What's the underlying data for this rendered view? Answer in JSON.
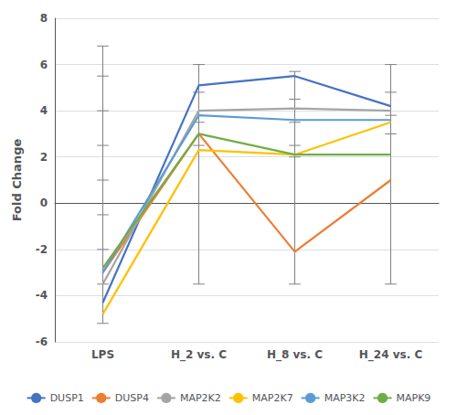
{
  "chart_data": {
    "type": "line",
    "categories": [
      "LPS",
      "H_2 vs. C",
      "H_8 vs. C",
      "H_24 vs. C"
    ],
    "series": [
      {
        "name": "DUSP1",
        "color": "#4472C4",
        "values": [
          -4.3,
          5.1,
          5.5,
          4.2
        ]
      },
      {
        "name": "DUSP4",
        "color": "#ED7D31",
        "values": [
          -3.0,
          3.0,
          -2.1,
          1.0
        ]
      },
      {
        "name": "MAP2K2",
        "color": "#A5A5A5",
        "values": [
          -3.5,
          4.0,
          4.1,
          4.0
        ]
      },
      {
        "name": "MAP2K7",
        "color": "#FFC000",
        "values": [
          -4.8,
          2.3,
          2.1,
          3.5
        ]
      },
      {
        "name": "MAP3K2",
        "color": "#5B9BD5",
        "values": [
          -3.0,
          3.8,
          3.6,
          3.6
        ]
      },
      {
        "name": "MAPK9",
        "color": "#70AD47",
        "values": [
          -2.8,
          3.0,
          2.1,
          2.1
        ]
      }
    ],
    "error_bars": [
      {
        "low": -5.2,
        "high": 6.8,
        "ticks": [
          6.8,
          5.5,
          4.0,
          2.5,
          1.0,
          -0.5,
          -2.0,
          -3.5,
          -5.2
        ]
      },
      {
        "low": -3.5,
        "high": 6.0,
        "ticks": [
          6.0,
          4.8,
          3.5,
          2.5,
          -3.5
        ]
      },
      {
        "low": -3.5,
        "high": 5.7,
        "ticks": [
          5.7,
          4.5,
          3.5,
          2.5,
          2.0,
          -3.5
        ]
      },
      {
        "low": -3.5,
        "high": 6.0,
        "ticks": [
          6.0,
          4.8,
          3.8,
          3.0,
          -3.5
        ]
      }
    ],
    "ylabel": "Fold Change",
    "ylim": [
      -6,
      8
    ],
    "yticks": [
      -6,
      -4,
      -2,
      0,
      2,
      4,
      6,
      8
    ],
    "grid": true,
    "legend": "bottom"
  }
}
